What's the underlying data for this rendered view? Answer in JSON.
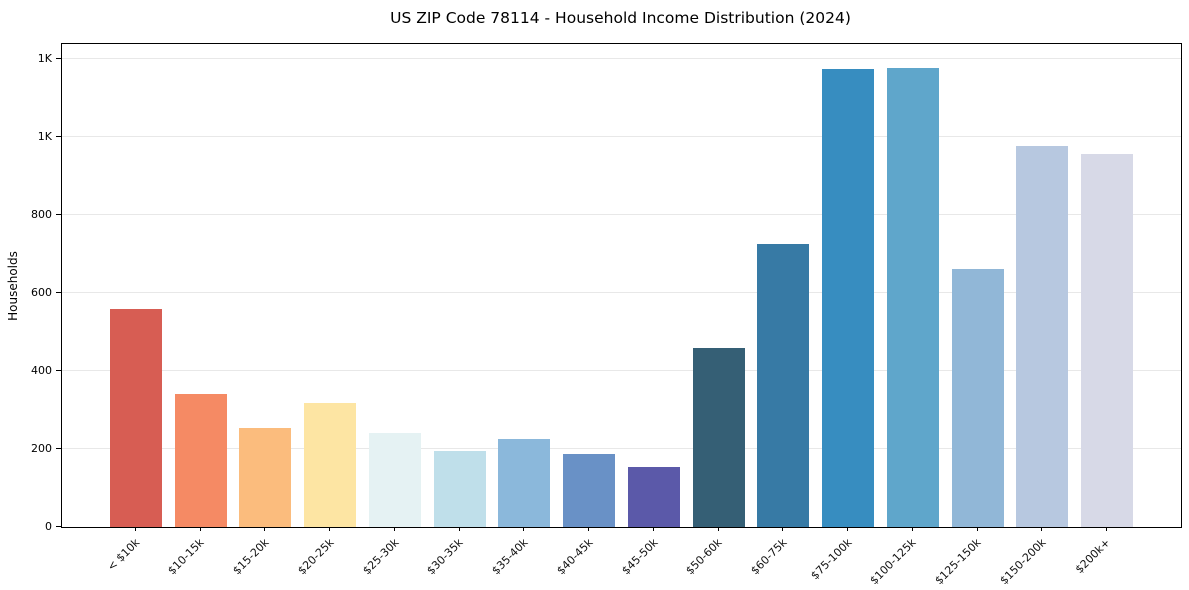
{
  "page": {
    "background": "#ffffff"
  },
  "chart_data": {
    "type": "bar",
    "title": "US ZIP Code 78114 - Household Income Distribution (2024)",
    "xlabel": "",
    "ylabel": "Households",
    "categories": [
      "< $10k",
      "$10-15k",
      "$15-20k",
      "$20-25k",
      "$25-30k",
      "$30-35k",
      "$35-40k",
      "$40-45k",
      "$45-50k",
      "$50-60k",
      "$60-75k",
      "$75-100k",
      "$100-125k",
      "$125-150k",
      "$150-200k",
      "$200k+"
    ],
    "values": [
      558,
      341,
      255,
      317,
      242,
      196,
      226,
      187,
      154,
      460,
      726,
      1173,
      1176,
      661,
      976,
      957
    ],
    "bar_colors": [
      "#d75d53",
      "#f58a64",
      "#fbbc7d",
      "#fde5a3",
      "#e5f2f3",
      "#bfdfea",
      "#8bb8db",
      "#6991c6",
      "#5b59a9",
      "#355f75",
      "#377aa5",
      "#378dc0",
      "#5fa6cb",
      "#91b7d7",
      "#b7c8e0",
      "#d7d9e7"
    ],
    "ylim": [
      0,
      1238
    ],
    "yticks": [
      0,
      200,
      400,
      600,
      800,
      1000,
      1200
    ],
    "ytick_labels": [
      "0",
      "200",
      "400",
      "600",
      "800",
      "1K",
      "1K"
    ],
    "grid": true,
    "grid_color": "#e8e8e8",
    "spine_color": "#000000",
    "legend": "none",
    "x_tick_rotation_deg": 45
  }
}
